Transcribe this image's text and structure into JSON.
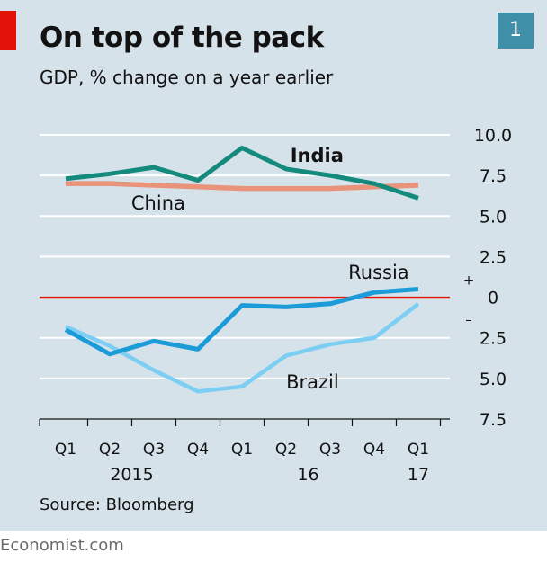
{
  "header": {
    "title": "On top of the pack",
    "subtitle": "GDP, % change on a year earlier",
    "badge": "1"
  },
  "footer": {
    "source": "Source: Bloomberg",
    "brand": "Economist.com"
  },
  "colors": {
    "india": "#148a7c",
    "china": "#e8937a",
    "russia": "#1b9bd8",
    "brazil": "#7ccff2",
    "zero_line": "#e3120b",
    "gridline": "#ffffff",
    "background": "#d6e2ea"
  },
  "chart_data": {
    "type": "line",
    "title": "On top of the pack",
    "subtitle": "GDP, % change on a year earlier",
    "x": [
      "Q1 2015",
      "Q2 2015",
      "Q3 2015",
      "Q4 2015",
      "Q1 2016",
      "Q2 2016",
      "Q3 2016",
      "Q4 2016",
      "Q1 2017"
    ],
    "x_tick_labels": [
      "Q1",
      "Q2",
      "Q3",
      "Q4",
      "Q1",
      "Q2",
      "Q3",
      "Q4",
      "Q1"
    ],
    "year_labels": [
      {
        "label": "2015",
        "index": 1.5
      },
      {
        "label": "16",
        "index": 5.5
      },
      {
        "label": "17",
        "index": 8
      }
    ],
    "ylim": [
      -7.5,
      10
    ],
    "y_ticks": [
      {
        "value": 10,
        "label": "10.0"
      },
      {
        "value": 7.5,
        "label": "7.5"
      },
      {
        "value": 5,
        "label": "5.0"
      },
      {
        "value": 2.5,
        "label": "2.5"
      },
      {
        "value": 0,
        "label": "0"
      },
      {
        "value": -2.5,
        "label": "2.5"
      },
      {
        "value": -5,
        "label": "5.0"
      },
      {
        "value": -7.5,
        "label": "7.5"
      }
    ],
    "plus_label": "+",
    "minus_label": "–",
    "series": [
      {
        "name": "India",
        "values": [
          7.3,
          7.6,
          8.0,
          7.2,
          9.2,
          7.9,
          7.5,
          7.0,
          6.1
        ]
      },
      {
        "name": "China",
        "values": [
          7.0,
          7.0,
          6.9,
          6.8,
          6.7,
          6.7,
          6.7,
          6.8,
          6.9
        ]
      },
      {
        "name": "Russia",
        "values": [
          -2.0,
          -3.5,
          -2.7,
          -3.2,
          -0.5,
          -0.6,
          -0.4,
          0.3,
          0.5
        ]
      },
      {
        "name": "Brazil",
        "values": [
          -1.8,
          -3.0,
          -4.5,
          -5.8,
          -5.5,
          -3.6,
          -2.9,
          -2.5,
          -0.4
        ]
      }
    ],
    "grid": true
  }
}
